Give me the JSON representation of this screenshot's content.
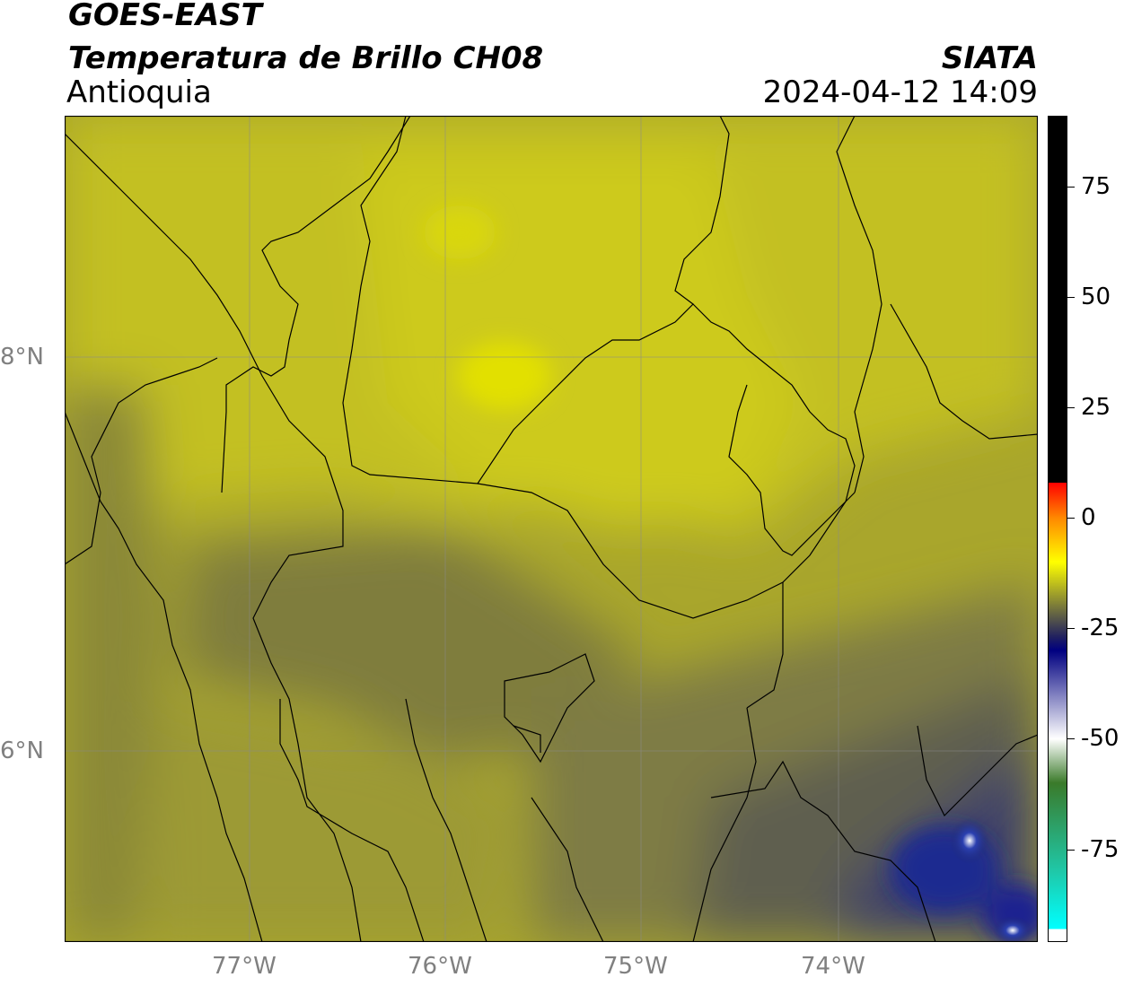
{
  "header": {
    "satellite": "GOES-EAST",
    "product": "Temperatura de Brillo CH08",
    "region": "Antioquia",
    "agency": "SIATA",
    "datetime": "2024-04-12 14:09"
  },
  "map": {
    "lon_ticks": [
      "77°W",
      "76°W",
      "75°W",
      "74°W"
    ],
    "lat_ticks": [
      "8°N",
      "6°N"
    ],
    "lon_range": [
      -77.95,
      -73.05
    ],
    "lat_range": [
      5.05,
      9.25
    ],
    "gridlines": true
  },
  "colorbar": {
    "ticks": [
      "75",
      "50",
      "25",
      "0",
      "-25",
      "-50",
      "-75"
    ],
    "tick_values": [
      75,
      50,
      25,
      0,
      -25,
      -50,
      -75
    ],
    "range": [
      -96,
      91
    ],
    "stops": [
      {
        "value": 91,
        "color": "#000000"
      },
      {
        "value": 8,
        "color": "#000000"
      },
      {
        "value": 8,
        "color": "#ff0000"
      },
      {
        "value": 0,
        "color": "#ff8800"
      },
      {
        "value": -10,
        "color": "#ffff00"
      },
      {
        "value": -20,
        "color": "#7a7a3a"
      },
      {
        "value": -27,
        "color": "#202060"
      },
      {
        "value": -30,
        "color": "#000080"
      },
      {
        "value": -50,
        "color": "#ffffff"
      },
      {
        "value": -60,
        "color": "#3a7a2a"
      },
      {
        "value": -80,
        "color": "#1fc8a8"
      },
      {
        "value": -93,
        "color": "#00ffff"
      },
      {
        "value": -93,
        "color": "#ffffff"
      },
      {
        "value": -96,
        "color": "#ffffff"
      }
    ]
  },
  "colors": {
    "bright_yellow": "#e2e000",
    "mid_yellow": "#c7c31a",
    "olive": "#9a9630",
    "dark_olive": "#707040",
    "navy": "#1f2a80"
  }
}
